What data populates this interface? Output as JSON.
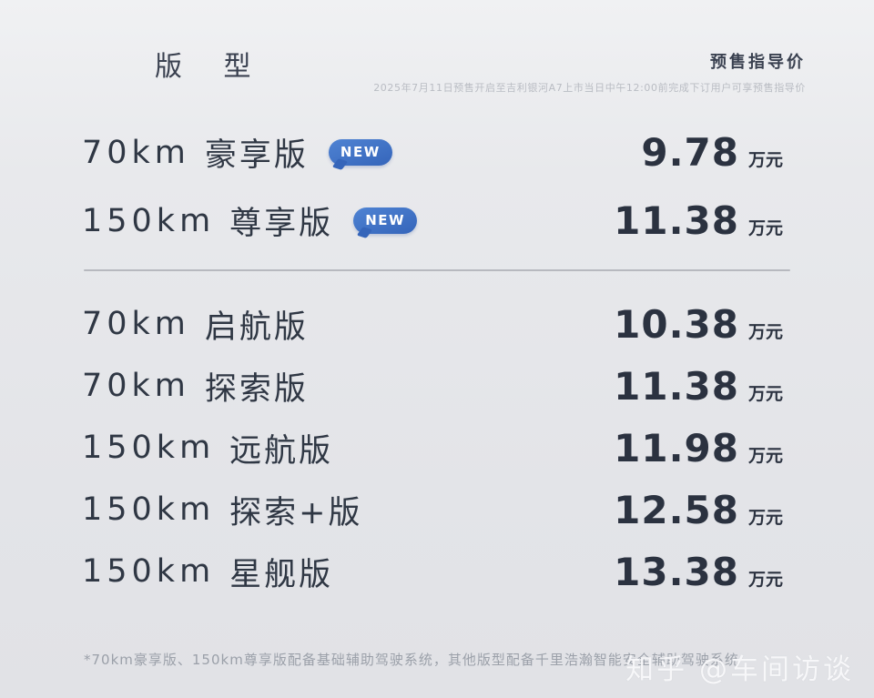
{
  "page": {
    "background_top": "#f0f1f3",
    "background_bottom": "#e1e2e6",
    "text_color": "#2f3744",
    "accent_blue": "#3b70c4"
  },
  "header": {
    "model_column_title": "版 型",
    "price_column_title": "预售指导价",
    "presale_note": "2025年7月11日预售开启至吉利银河A7上市当日中午12:00前完成下订用户可享预售指导价"
  },
  "badge_label": "NEW",
  "table": {
    "featured_rows": [
      {
        "range": "70km",
        "trim": "豪享版",
        "is_new": true,
        "price": "9.78",
        "unit": "万元"
      },
      {
        "range": "150km",
        "trim": "尊享版",
        "is_new": true,
        "price": "11.38",
        "unit": "万元"
      }
    ],
    "standard_rows": [
      {
        "range": "70km",
        "trim": "启航版",
        "is_new": false,
        "price": "10.38",
        "unit": "万元"
      },
      {
        "range": "70km",
        "trim": "探索版",
        "is_new": false,
        "price": "11.38",
        "unit": "万元"
      },
      {
        "range": "150km",
        "trim": "远航版",
        "is_new": false,
        "price": "11.98",
        "unit": "万元"
      },
      {
        "range": "150km",
        "trim": "探索+版",
        "is_new": false,
        "price": "12.58",
        "unit": "万元"
      },
      {
        "range": "150km",
        "trim": "星舰版",
        "is_new": false,
        "price": "13.38",
        "unit": "万元"
      }
    ]
  },
  "footer": {
    "note": "*70km豪享版、150km尊享版配备基础辅助驾驶系统，其他版型配备千里浩瀚智能安全辅助驾驶系统"
  },
  "watermark": "知乎 @车间访谈"
}
